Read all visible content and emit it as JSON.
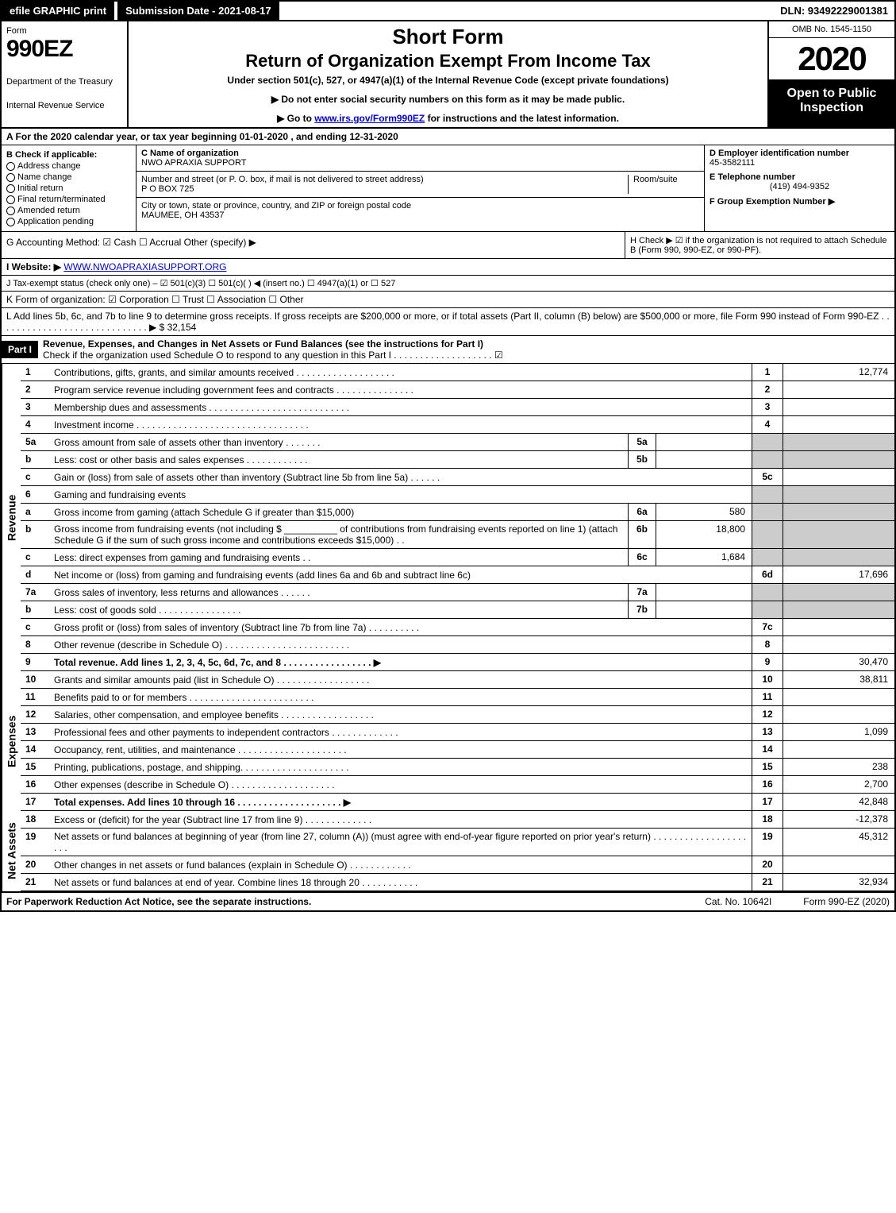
{
  "topbar": {
    "efile": "efile GRAPHIC print",
    "submission": "Submission Date - 2021-08-17",
    "dln": "DLN: 93492229001381"
  },
  "header": {
    "form_label": "Form",
    "form_number": "990EZ",
    "dept1": "Department of the Treasury",
    "dept2": "Internal Revenue Service",
    "title1": "Short Form",
    "title2": "Return of Organization Exempt From Income Tax",
    "subtitle": "Under section 501(c), 527, or 4947(a)(1) of the Internal Revenue Code (except private foundations)",
    "note1": "▶ Do not enter social security numbers on this form as it may be made public.",
    "note2_pre": "▶ Go to ",
    "note2_link": "www.irs.gov/Form990EZ",
    "note2_post": " for instructions and the latest information.",
    "omb": "OMB No. 1545-1150",
    "year": "2020",
    "open": "Open to Public Inspection"
  },
  "lineA": "A For the 2020 calendar year, or tax year beginning 01-01-2020 , and ending 12-31-2020",
  "boxB": {
    "title": "B Check if applicable:",
    "items": [
      "Address change",
      "Name change",
      "Initial return",
      "Final return/terminated",
      "Amended return",
      "Application pending"
    ]
  },
  "boxC": {
    "name_lbl": "C Name of organization",
    "name": "NWO APRAXIA SUPPORT",
    "addr_lbl": "Number and street (or P. O. box, if mail is not delivered to street address)",
    "room_lbl": "Room/suite",
    "addr": "P O BOX 725",
    "city_lbl": "City or town, state or province, country, and ZIP or foreign postal code",
    "city": "MAUMEE, OH  43537"
  },
  "boxD": {
    "lbl": "D Employer identification number",
    "val": "45-3582111"
  },
  "boxE": {
    "lbl": "E Telephone number",
    "val": "(419) 494-9352"
  },
  "boxF": {
    "lbl": "F Group Exemption Number ▶"
  },
  "lineG": "G Accounting Method:  ☑ Cash  ☐ Accrual  Other (specify) ▶",
  "lineH": "H Check ▶ ☑ if the organization is not required to attach Schedule B (Form 990, 990-EZ, or 990-PF).",
  "lineI_pre": "I Website: ▶",
  "lineI_link": "WWW.NWOAPRAXIASUPPORT.ORG",
  "lineJ": "J Tax-exempt status (check only one) – ☑ 501(c)(3) ☐ 501(c)(  ) ◀ (insert no.) ☐ 4947(a)(1) or ☐ 527",
  "lineK": "K Form of organization:  ☑ Corporation  ☐ Trust  ☐ Association  ☐ Other",
  "lineL": "L Add lines 5b, 6c, and 7b to line 9 to determine gross receipts. If gross receipts are $200,000 or more, or if total assets (Part II, column (B) below) are $500,000 or more, file Form 990 instead of Form 990-EZ  .  .  .  .  .  .  .  .  .  .  .  .  .  .  .  .  .  .  .  .  .  .  .  .  .  .  .  .  .  ▶ $ 32,154",
  "part1": {
    "label": "Part I",
    "title": "Revenue, Expenses, and Changes in Net Assets or Fund Balances (see the instructions for Part I)",
    "check": "Check if the organization used Schedule O to respond to any question in this Part I  .  .  .  .  .  .  .  .  .  .  .  .  .  .  .  .  .  .  .   ☑"
  },
  "sections": {
    "revenue": "Revenue",
    "expenses": "Expenses",
    "netassets": "Net Assets"
  },
  "rows": [
    {
      "n": "1",
      "d": "Contributions, gifts, grants, and similar amounts received  .  .  .  .  .  .  .  .  .  .  .  .  .  .  .  .  .  .  .",
      "ln": "1",
      "amt": "12,774"
    },
    {
      "n": "2",
      "d": "Program service revenue including government fees and contracts  .  .  .  .  .  .  .  .  .  .  .  .  .  .  .",
      "ln": "2",
      "amt": ""
    },
    {
      "n": "3",
      "d": "Membership dues and assessments  .  .  .  .  .  .  .  .  .  .  .  .  .  .  .  .  .  .  .  .  .  .  .  .  .  .  .",
      "ln": "3",
      "amt": ""
    },
    {
      "n": "4",
      "d": "Investment income  .  .  .  .  .  .  .  .  .  .  .  .  .  .  .  .  .  .  .  .  .  .  .  .  .  .  .  .  .  .  .  .  .",
      "ln": "4",
      "amt": ""
    },
    {
      "n": "5a",
      "d": "Gross amount from sale of assets other than inventory  .  .  .  .  .  .  .",
      "inlab": "5a",
      "inval": "",
      "shade": true
    },
    {
      "n": "b",
      "d": "Less: cost or other basis and sales expenses  .  .  .  .  .  .  .  .  .  .  .  .",
      "inlab": "5b",
      "inval": "",
      "shade": true
    },
    {
      "n": "c",
      "d": "Gain or (loss) from sale of assets other than inventory (Subtract line 5b from line 5a)  .  .  .  .  .  .",
      "ln": "5c",
      "amt": ""
    },
    {
      "n": "6",
      "d": "Gaming and fundraising events",
      "shade": true
    },
    {
      "n": "a",
      "d": "Gross income from gaming (attach Schedule G if greater than $15,000)",
      "inlab": "6a",
      "inval": "580",
      "shade": true
    },
    {
      "n": "b",
      "d": "Gross income from fundraising events (not including $ __________ of contributions from fundraising events reported on line 1) (attach Schedule G if the sum of such gross income and contributions exceeds $15,000)   .  .",
      "inlab": "6b",
      "inval": "18,800",
      "shade": true
    },
    {
      "n": "c",
      "d": "Less: direct expenses from gaming and fundraising events      .  .",
      "inlab": "6c",
      "inval": "1,684",
      "shade": true
    },
    {
      "n": "d",
      "d": "Net income or (loss) from gaming and fundraising events (add lines 6a and 6b and subtract line 6c)",
      "ln": "6d",
      "amt": "17,696"
    },
    {
      "n": "7a",
      "d": "Gross sales of inventory, less returns and allowances  .  .  .  .  .  .",
      "inlab": "7a",
      "inval": "",
      "shade": true
    },
    {
      "n": "b",
      "d": "Less: cost of goods sold         .  .  .  .  .  .  .  .  .  .  .  .  .  .  .  .",
      "inlab": "7b",
      "inval": "",
      "shade": true
    },
    {
      "n": "c",
      "d": "Gross profit or (loss) from sales of inventory (Subtract line 7b from line 7a)  .  .  .  .  .  .  .  .  .  .",
      "ln": "7c",
      "amt": ""
    },
    {
      "n": "8",
      "d": "Other revenue (describe in Schedule O)  .  .  .  .  .  .  .  .  .  .  .  .  .  .  .  .  .  .  .  .  .  .  .  .",
      "ln": "8",
      "amt": ""
    },
    {
      "n": "9",
      "d": "Total revenue. Add lines 1, 2, 3, 4, 5c, 6d, 7c, and 8  .  .  .  .  .  .  .  .  .  .  .  .  .  .  .  .  .   ▶",
      "ln": "9",
      "amt": "30,470",
      "bold": true
    }
  ],
  "exp_rows": [
    {
      "n": "10",
      "d": "Grants and similar amounts paid (list in Schedule O)  .  .  .  .  .  .  .  .  .  .  .  .  .  .  .  .  .  .",
      "ln": "10",
      "amt": "38,811"
    },
    {
      "n": "11",
      "d": "Benefits paid to or for members       .  .  .  .  .  .  .  .  .  .  .  .  .  .  .  .  .  .  .  .  .  .  .  .",
      "ln": "11",
      "amt": ""
    },
    {
      "n": "12",
      "d": "Salaries, other compensation, and employee benefits  .  .  .  .  .  .  .  .  .  .  .  .  .  .  .  .  .  .",
      "ln": "12",
      "amt": ""
    },
    {
      "n": "13",
      "d": "Professional fees and other payments to independent contractors  .  .  .  .  .  .  .  .  .  .  .  .  .",
      "ln": "13",
      "amt": "1,099"
    },
    {
      "n": "14",
      "d": "Occupancy, rent, utilities, and maintenance  .  .  .  .  .  .  .  .  .  .  .  .  .  .  .  .  .  .  .  .  .",
      "ln": "14",
      "amt": ""
    },
    {
      "n": "15",
      "d": "Printing, publications, postage, and shipping.  .  .  .  .  .  .  .  .  .  .  .  .  .  .  .  .  .  .  .  .",
      "ln": "15",
      "amt": "238"
    },
    {
      "n": "16",
      "d": "Other expenses (describe in Schedule O)       .  .  .  .  .  .  .  .  .  .  .  .  .  .  .  .  .  .  .  .",
      "ln": "16",
      "amt": "2,700"
    },
    {
      "n": "17",
      "d": "Total expenses. Add lines 10 through 16     .  .  .  .  .  .  .  .  .  .  .  .  .  .  .  .  .  .  .  .   ▶",
      "ln": "17",
      "amt": "42,848",
      "bold": true
    }
  ],
  "na_rows": [
    {
      "n": "18",
      "d": "Excess or (deficit) for the year (Subtract line 17 from line 9)        .  .  .  .  .  .  .  .  .  .  .  .  .",
      "ln": "18",
      "amt": "-12,378"
    },
    {
      "n": "19",
      "d": "Net assets or fund balances at beginning of year (from line 27, column (A)) (must agree with end-of-year figure reported on prior year's return)  .  .  .  .  .  .  .  .  .  .  .  .  .  .  .  .  .  .  .  .  .",
      "ln": "19",
      "amt": "45,312"
    },
    {
      "n": "20",
      "d": "Other changes in net assets or fund balances (explain in Schedule O)  .  .  .  .  .  .  .  .  .  .  .  .",
      "ln": "20",
      "amt": ""
    },
    {
      "n": "21",
      "d": "Net assets or fund balances at end of year. Combine lines 18 through 20  .  .  .  .  .  .  .  .  .  .  .",
      "ln": "21",
      "amt": "32,934"
    }
  ],
  "footer": {
    "left": "For Paperwork Reduction Act Notice, see the separate instructions.",
    "center": "Cat. No. 10642I",
    "right": "Form 990-EZ (2020)"
  }
}
